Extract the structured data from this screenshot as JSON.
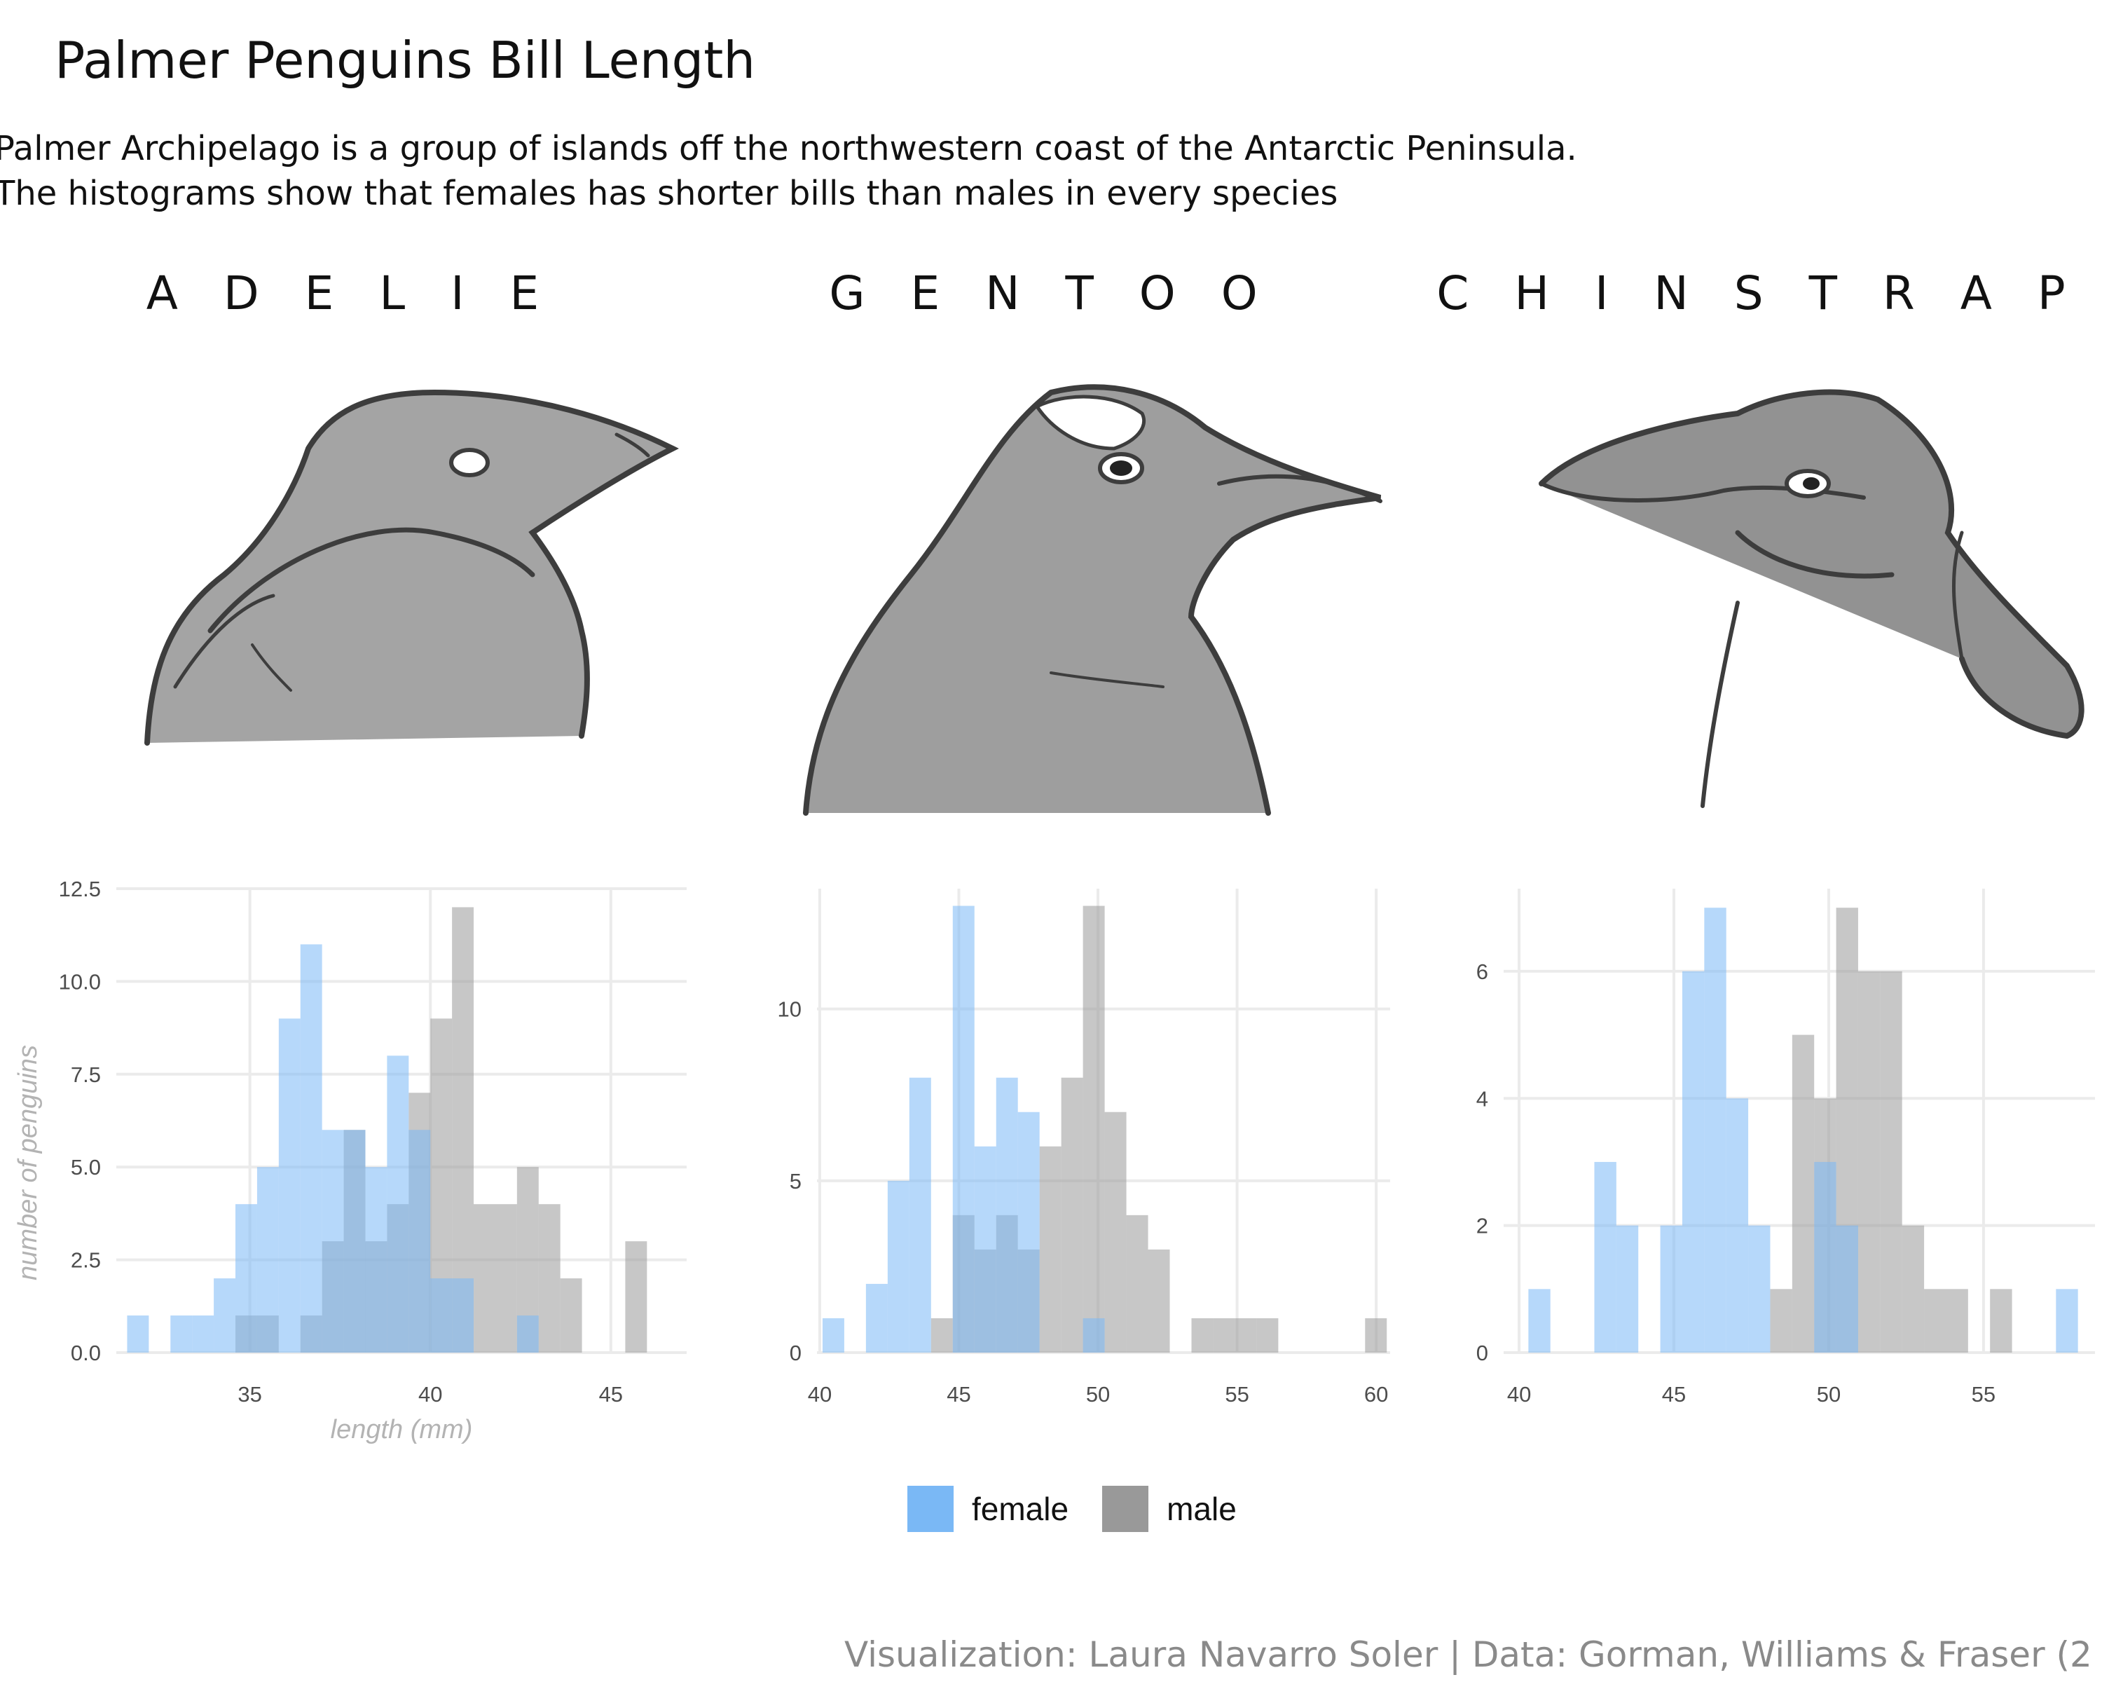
{
  "header": {
    "title": "Palmer Penguins Bill Length",
    "subtitle_lines": [
      "Palmer Archipelago is a group of islands off the northwestern coast of the Antarctic Peninsula.",
      "The histograms show that females has shorter bills than males in every species"
    ]
  },
  "species": [
    "A D E L I E",
    "G E N T O O",
    "C H I N S T R A P"
  ],
  "legend": [
    {
      "label": "female",
      "color": "#7ab8f5"
    },
    {
      "label": "male",
      "color": "#999999"
    }
  ],
  "caption": "Visualization: Laura Navarro Soler | Data: Gorman, Williams & Fraser (2",
  "colors": {
    "female": "#7ab8f5",
    "male": "#999999",
    "grid": "#ebebeb",
    "axis_text": "#4d4d4d",
    "axis_title": "#b3b3b3"
  },
  "chart_data": [
    {
      "type": "bar",
      "panel": "Adelie",
      "xlabel": "length (mm)",
      "ylabel": "number of penguins",
      "xlim": [
        31.3,
        47.1
      ],
      "ylim": [
        0,
        12.5
      ],
      "x_ticks": [
        "35",
        "40",
        "45"
      ],
      "y_ticks": [
        "0.0",
        "2.5",
        "5.0",
        "7.5",
        "10.0",
        "12.5"
      ],
      "bin_width": 0.6,
      "series": [
        {
          "name": "female",
          "bins_start": [
            31.6,
            32.8,
            33.4,
            34.0,
            34.6,
            35.2,
            35.8,
            36.4,
            37.0,
            37.6,
            38.2,
            38.8,
            39.4,
            40.0,
            40.6,
            42.4
          ],
          "values": [
            1,
            1,
            1,
            2,
            4,
            5,
            9,
            11,
            6,
            6,
            5,
            8,
            6,
            2,
            2,
            1
          ]
        },
        {
          "name": "male",
          "bins_start": [
            34.6,
            35.2,
            36.4,
            37.0,
            37.6,
            38.2,
            38.8,
            39.4,
            40.0,
            40.6,
            41.2,
            41.8,
            42.4,
            43.0,
            43.6,
            45.4
          ],
          "values": [
            1,
            1,
            1,
            3,
            6,
            3,
            4,
            7,
            9,
            12,
            4,
            4,
            5,
            4,
            2,
            3
          ]
        }
      ]
    },
    {
      "type": "bar",
      "panel": "Gentoo",
      "xlabel": "",
      "ylabel": "",
      "xlim": [
        39.9,
        60.5
      ],
      "ylim": [
        0,
        13.5
      ],
      "x_ticks": [
        "40",
        "45",
        "50",
        "55",
        "60"
      ],
      "y_ticks": [
        "0",
        "5",
        "10"
      ],
      "bin_width": 0.78,
      "series": [
        {
          "name": "female",
          "bins_start": [
            40.1,
            41.66,
            42.44,
            43.22,
            44.78,
            45.56,
            46.34,
            47.12,
            49.46
          ],
          "values": [
            1,
            2,
            5,
            8,
            13,
            6,
            8,
            7,
            1
          ]
        },
        {
          "name": "male",
          "bins_start": [
            44.0,
            44.78,
            45.56,
            46.34,
            47.12,
            47.9,
            48.68,
            49.46,
            50.24,
            51.02,
            51.8,
            53.36,
            54.14,
            54.92,
            55.7,
            59.6
          ],
          "values": [
            1,
            4,
            3,
            4,
            3,
            6,
            8,
            13,
            7,
            4,
            3,
            1,
            1,
            1,
            1,
            1
          ]
        }
      ]
    },
    {
      "type": "bar",
      "panel": "Chinstrap",
      "xlabel": "",
      "ylabel": "",
      "xlim": [
        39.5,
        58.6
      ],
      "ylim": [
        0,
        7.3
      ],
      "x_ticks": [
        "40",
        "45",
        "50",
        "55"
      ],
      "y_ticks": [
        "0",
        "2",
        "4",
        "6"
      ],
      "bin_width": 0.71,
      "series": [
        {
          "name": "female",
          "bins_start": [
            40.3,
            42.43,
            43.14,
            44.56,
            45.27,
            45.98,
            46.69,
            47.4,
            49.53,
            50.24,
            57.34
          ],
          "values": [
            1,
            3,
            2,
            2,
            6,
            7,
            4,
            2,
            3,
            2,
            1
          ]
        },
        {
          "name": "male",
          "bins_start": [
            48.11,
            48.82,
            49.53,
            50.24,
            50.95,
            51.66,
            52.37,
            53.08,
            53.79,
            55.21
          ],
          "values": [
            1,
            5,
            4,
            7,
            6,
            6,
            2,
            1,
            1,
            1
          ]
        }
      ]
    }
  ]
}
